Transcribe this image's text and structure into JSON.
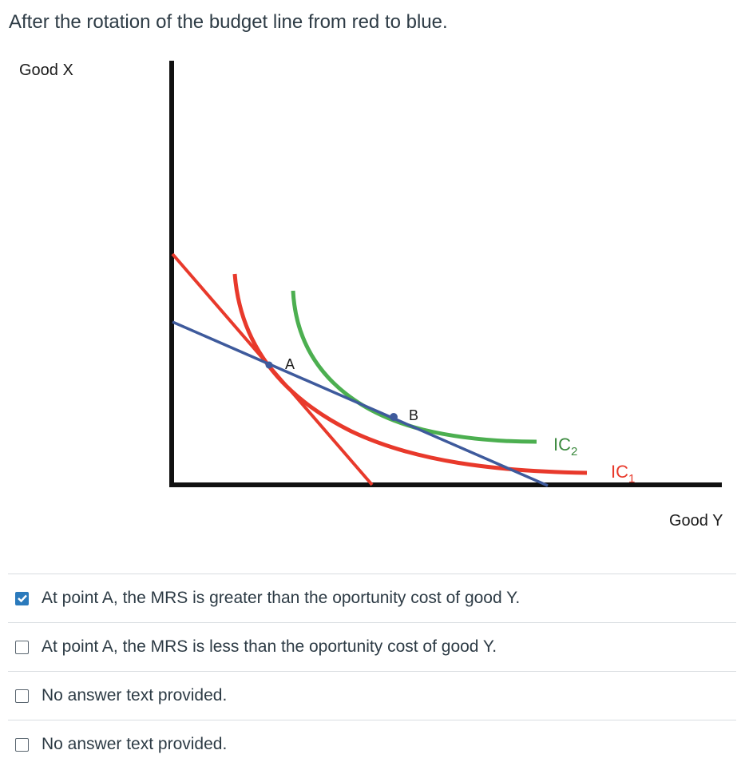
{
  "question": {
    "text": "After the rotation of the budget line from red to blue."
  },
  "figure": {
    "y_axis_label": "Good X",
    "x_axis_label": "Good Y",
    "point_a_label": "A",
    "point_b_label": "B",
    "ic2_label_main": "IC",
    "ic2_label_sub": "2",
    "ic1_label_main": "IC",
    "ic1_label_sub": "1",
    "colors": {
      "original_budget_line": "#e8392b",
      "new_budget_line": "#3e5a9c",
      "ic1": "#e8392b",
      "ic2": "#4caf50",
      "axes": "#111111"
    }
  },
  "answers": [
    {
      "text": "At point A, the MRS is greater than the oportunity cost of good Y.",
      "checked": true
    },
    {
      "text": "At point A, the MRS is less than the oportunity cost of good Y.",
      "checked": false
    },
    {
      "text": "No answer text provided.",
      "checked": false
    },
    {
      "text": "No answer text provided.",
      "checked": false
    }
  ]
}
